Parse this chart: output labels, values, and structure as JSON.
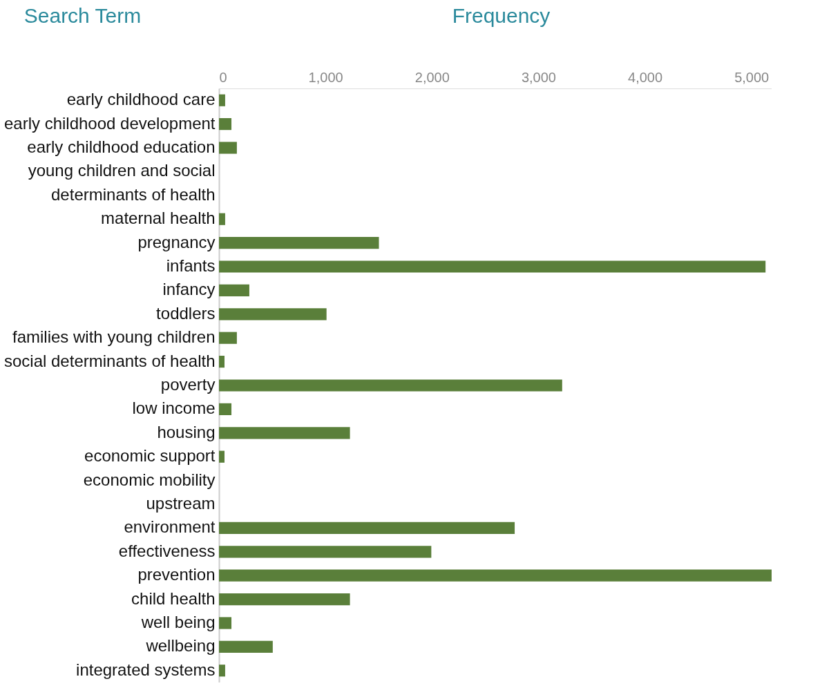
{
  "chart_data": {
    "type": "bar",
    "orientation": "horizontal",
    "xlabel": "Frequency",
    "ylabel": "Search Term",
    "categories": [
      "early childhood care",
      "early childhood development",
      "early childhood education",
      "young children and social",
      "determinants of health",
      "maternal health",
      "pregnancy",
      "infants",
      "infancy",
      "toddlers",
      "families with young children",
      "social determinants of health",
      "poverty",
      "low income",
      "housing",
      "economic support",
      "economic mobility",
      "upstream",
      "environment",
      "effectiveness",
      "prevention",
      "child health",
      "well being",
      "wellbeing",
      "integrated systems"
    ],
    "values": [
      58,
      117,
      168,
      0,
      0,
      58,
      1502,
      5133,
      285,
      1010,
      168,
      52,
      3223,
      117,
      1230,
      52,
      0,
      0,
      2777,
      1994,
      5190,
      1230,
      117,
      505,
      58
    ],
    "color": "#5a7f3a",
    "xlim": [
      0,
      5190
    ],
    "xticks": [
      {
        "value": 0,
        "label": "0"
      },
      {
        "value": 1000,
        "label": "1,000"
      },
      {
        "value": 2000,
        "label": "2,000"
      },
      {
        "value": 3000,
        "label": "3,000"
      },
      {
        "value": 4000,
        "label": "4,000"
      },
      {
        "value": 5000,
        "label": "5,000"
      }
    ],
    "grid": false
  }
}
